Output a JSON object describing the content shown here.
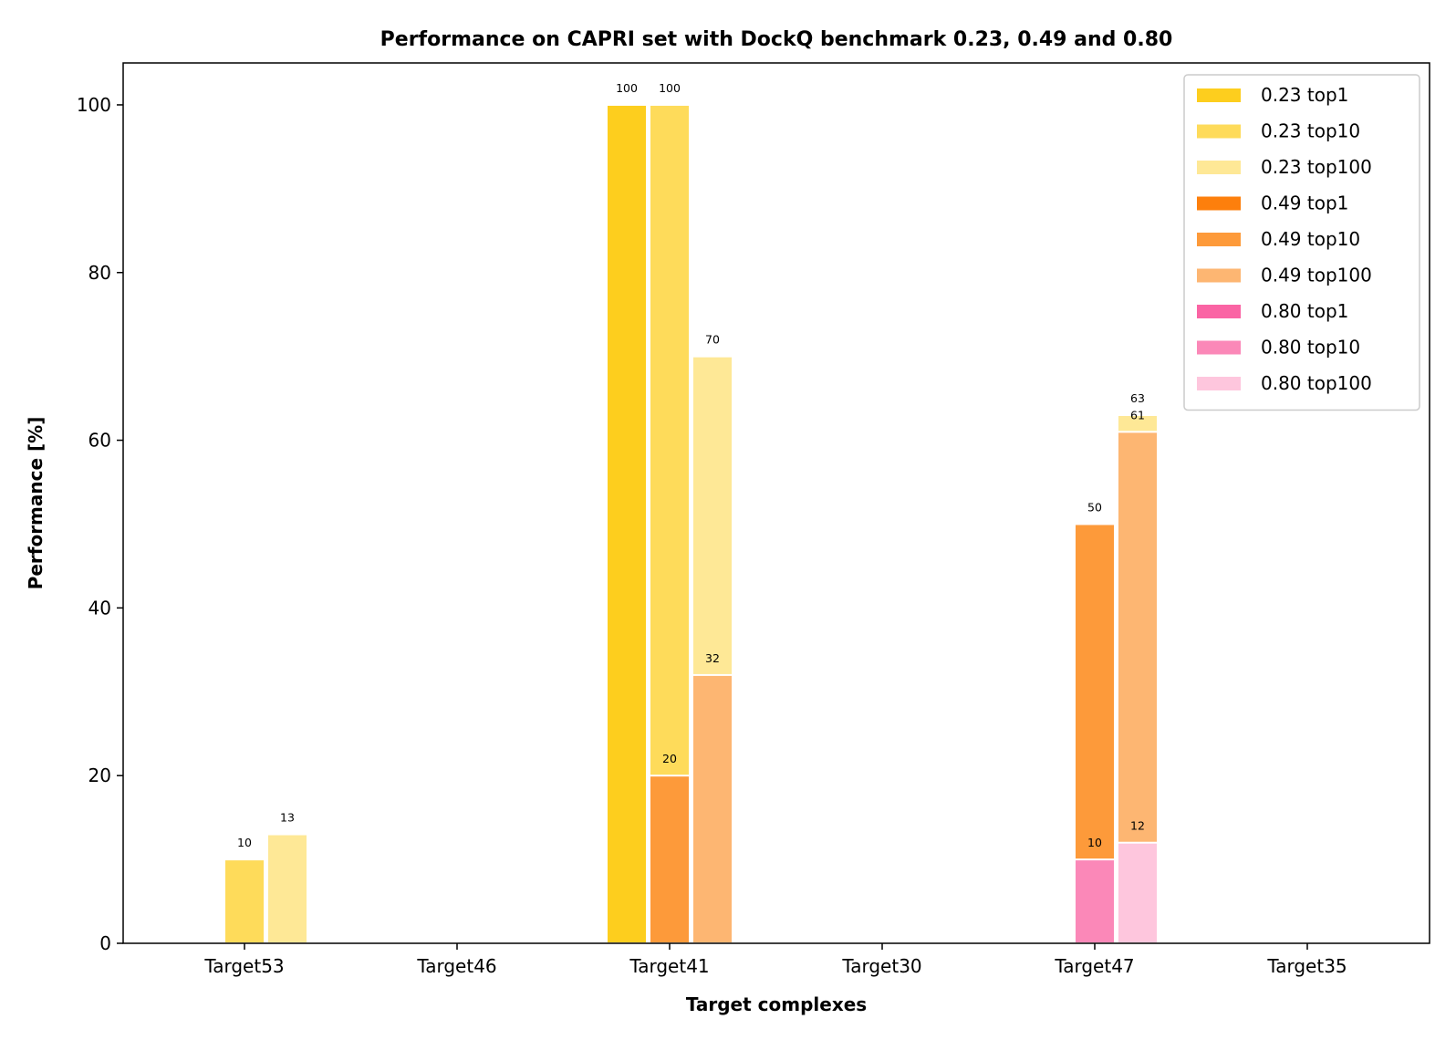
{
  "chart_data": {
    "type": "bar",
    "title": "Performance on CAPRI set with DockQ benchmark 0.23, 0.49 and 0.80",
    "xlabel": "Target complexes",
    "ylabel": "Performance [%]",
    "ylim": [
      0,
      105
    ],
    "yticks": [
      "0",
      "20",
      "40",
      "60",
      "80",
      "100"
    ],
    "categories": [
      "Target53",
      "Target46",
      "Target41",
      "Target30",
      "Target47",
      "Target35"
    ],
    "group_positions": [
      "top1",
      "top10",
      "top100"
    ],
    "grid": false,
    "legend_position": "top-right",
    "series": [
      {
        "name": "0.23 top1",
        "position": "top1",
        "color": "#FDCE1E",
        "values": [
          0,
          0,
          100,
          0,
          0,
          0
        ]
      },
      {
        "name": "0.23 top10",
        "position": "top10",
        "color": "#FEDB5A",
        "values": [
          10,
          0,
          100,
          0,
          0,
          0
        ]
      },
      {
        "name": "0.23 top100",
        "position": "top100",
        "color": "#FEE896",
        "values": [
          13,
          0,
          70,
          0,
          63,
          0
        ]
      },
      {
        "name": "0.49 top1",
        "position": "top1",
        "color": "#FD7F0C",
        "values": [
          0,
          0,
          0,
          0,
          0,
          0
        ]
      },
      {
        "name": "0.49 top10",
        "position": "top10",
        "color": "#FD9A3A",
        "values": [
          0,
          0,
          20,
          0,
          50,
          0
        ]
      },
      {
        "name": "0.49 top100",
        "position": "top100",
        "color": "#FDB672",
        "values": [
          0,
          0,
          32,
          0,
          61,
          0
        ]
      },
      {
        "name": "0.80 top1",
        "position": "top1",
        "color": "#FA64A4",
        "values": [
          0,
          0,
          0,
          0,
          0,
          0
        ]
      },
      {
        "name": "0.80 top10",
        "position": "top10",
        "color": "#FB88B8",
        "values": [
          0,
          0,
          0,
          0,
          10,
          0
        ]
      },
      {
        "name": "0.80 top100",
        "position": "top100",
        "color": "#FEC6DD",
        "values": [
          0,
          0,
          0,
          0,
          12,
          0
        ]
      }
    ]
  }
}
